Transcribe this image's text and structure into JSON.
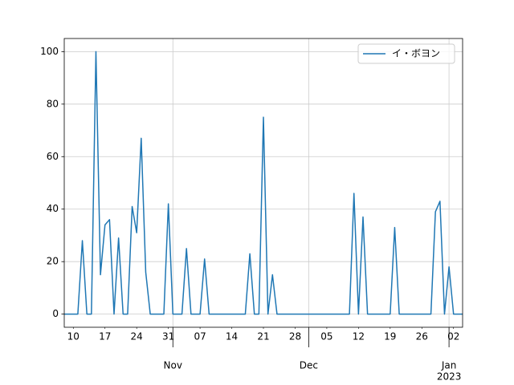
{
  "chart_data": {
    "type": "line",
    "x": [
      "2022-10-08",
      "2022-10-09",
      "2022-10-10",
      "2022-10-11",
      "2022-10-12",
      "2022-10-13",
      "2022-10-14",
      "2022-10-15",
      "2022-10-16",
      "2022-10-17",
      "2022-10-18",
      "2022-10-19",
      "2022-10-20",
      "2022-10-21",
      "2022-10-22",
      "2022-10-23",
      "2022-10-24",
      "2022-10-25",
      "2022-10-26",
      "2022-10-27",
      "2022-10-28",
      "2022-10-29",
      "2022-10-30",
      "2022-10-31",
      "2022-11-01",
      "2022-11-02",
      "2022-11-03",
      "2022-11-04",
      "2022-11-05",
      "2022-11-06",
      "2022-11-07",
      "2022-11-08",
      "2022-11-09",
      "2022-11-10",
      "2022-11-11",
      "2022-11-12",
      "2022-11-13",
      "2022-11-14",
      "2022-11-15",
      "2022-11-16",
      "2022-11-17",
      "2022-11-18",
      "2022-11-19",
      "2022-11-20",
      "2022-11-21",
      "2022-11-22",
      "2022-11-23",
      "2022-11-24",
      "2022-11-25",
      "2022-11-26",
      "2022-11-27",
      "2022-11-28",
      "2022-11-29",
      "2022-11-30",
      "2022-12-01",
      "2022-12-02",
      "2022-12-03",
      "2022-12-04",
      "2022-12-05",
      "2022-12-06",
      "2022-12-07",
      "2022-12-08",
      "2022-12-09",
      "2022-12-10",
      "2022-12-11",
      "2022-12-12",
      "2022-12-13",
      "2022-12-14",
      "2022-12-15",
      "2022-12-16",
      "2022-12-17",
      "2022-12-18",
      "2022-12-19",
      "2022-12-20",
      "2022-12-21",
      "2022-12-22",
      "2022-12-23",
      "2022-12-24",
      "2022-12-25",
      "2022-12-26",
      "2022-12-27",
      "2022-12-28",
      "2022-12-29",
      "2022-12-30",
      "2022-12-31",
      "2023-01-01",
      "2023-01-02",
      "2023-01-03",
      "2023-01-04"
    ],
    "series": [
      {
        "name": "イ・ボヨン",
        "color": "#1f77b4",
        "values": [
          0,
          0,
          0,
          0,
          28,
          0,
          0,
          100,
          15,
          34,
          36,
          0,
          29,
          0,
          0,
          41,
          31,
          67,
          16,
          0,
          0,
          0,
          0,
          42,
          0,
          0,
          0,
          25,
          0,
          0,
          0,
          21,
          0,
          0,
          0,
          0,
          0,
          0,
          0,
          0,
          0,
          23,
          0,
          0,
          75,
          0,
          15,
          0,
          0,
          0,
          0,
          0,
          0,
          0,
          0,
          0,
          0,
          0,
          0,
          0,
          0,
          0,
          0,
          0,
          46,
          0,
          37,
          0,
          0,
          0,
          0,
          0,
          0,
          33,
          0,
          0,
          0,
          0,
          0,
          0,
          0,
          0,
          39,
          43,
          0,
          18,
          0,
          0,
          0
        ]
      }
    ],
    "xlim": [
      "2022-10-08",
      "2023-01-04"
    ],
    "xticks": [
      {
        "value": "2022-11-01",
        "label": "Nov"
      },
      {
        "value": "2022-12-01",
        "label": "Dec"
      },
      {
        "value": "2023-01-01",
        "label": "Jan"
      }
    ],
    "xminorticks": [
      {
        "value": "2022-10-10",
        "label": "10"
      },
      {
        "value": "2022-10-17",
        "label": "17"
      },
      {
        "value": "2022-10-24",
        "label": "24"
      },
      {
        "value": "2022-10-31",
        "label": "31"
      },
      {
        "value": "2022-11-07",
        "label": "07"
      },
      {
        "value": "2022-11-14",
        "label": "14"
      },
      {
        "value": "2022-11-21",
        "label": "21"
      },
      {
        "value": "2022-11-28",
        "label": "28"
      },
      {
        "value": "2022-12-05",
        "label": "05"
      },
      {
        "value": "2022-12-12",
        "label": "12"
      },
      {
        "value": "2022-12-19",
        "label": "19"
      },
      {
        "value": "2022-12-26",
        "label": "26"
      },
      {
        "value": "2023-01-02",
        "label": "02"
      }
    ],
    "x_offset_label": "2023",
    "ylim": [
      -5,
      105
    ],
    "yticks": [
      0,
      20,
      40,
      60,
      80,
      100
    ],
    "grid": true,
    "legend": "upper right"
  }
}
